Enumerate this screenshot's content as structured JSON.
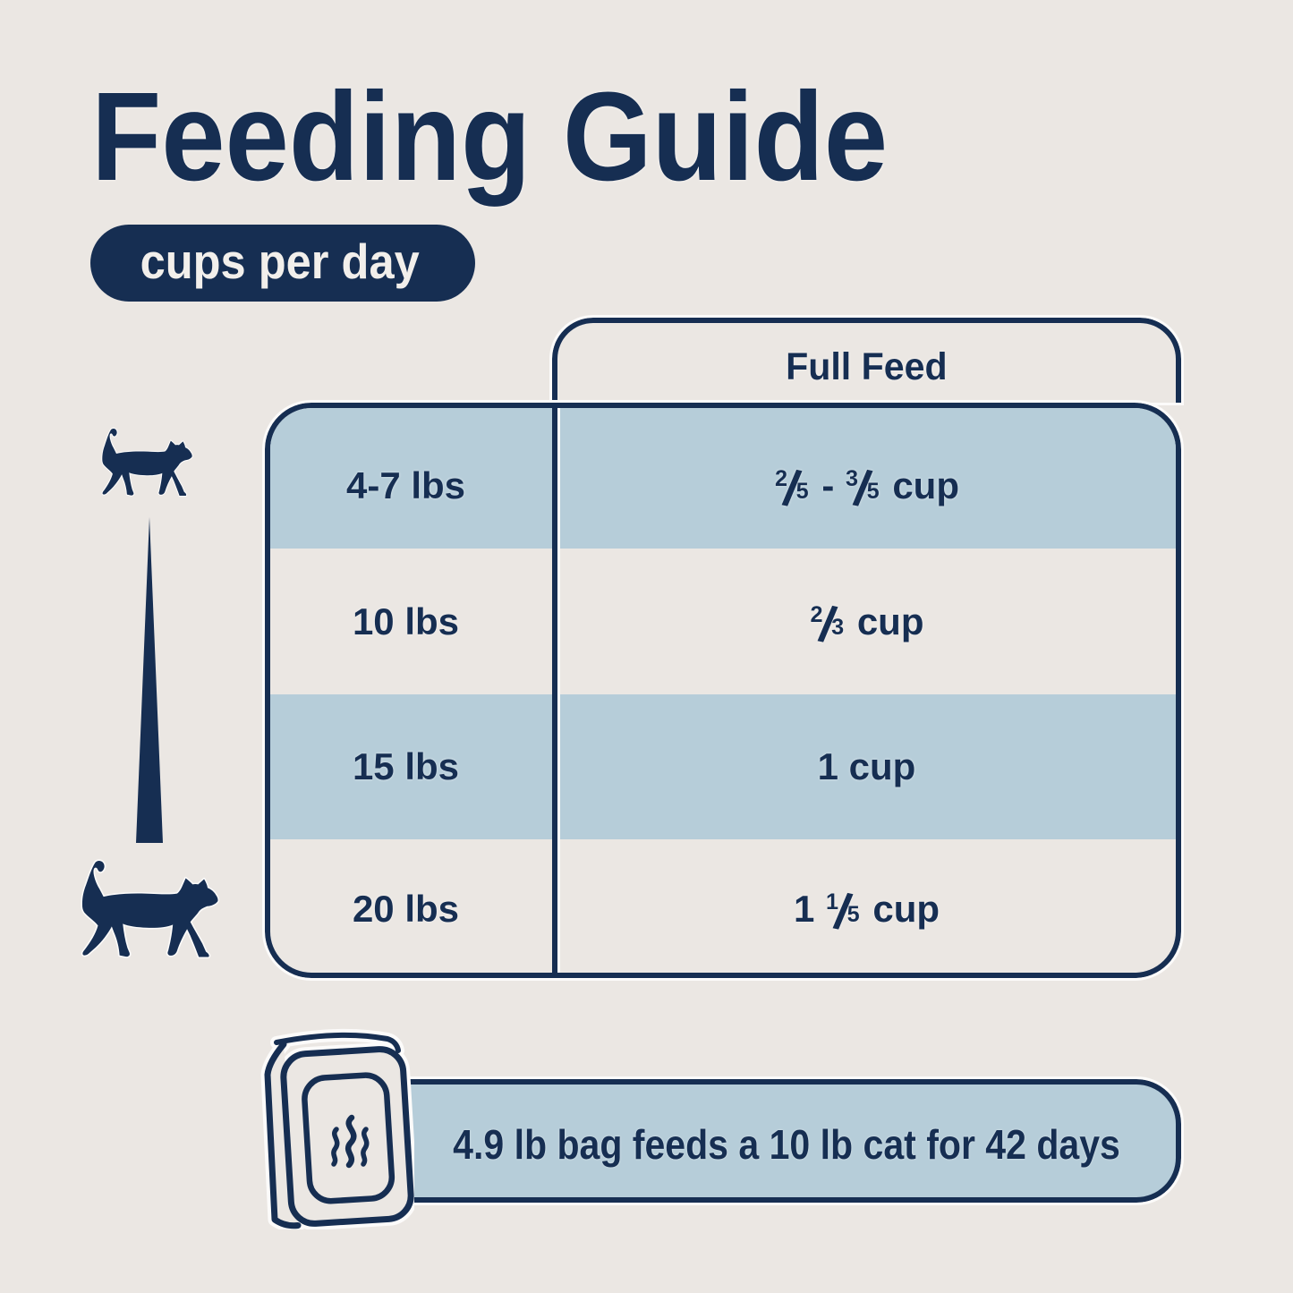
{
  "colors": {
    "background": "#ebe7e3",
    "navy": "#162e52",
    "row_blue": "#b6cdd9",
    "pill_text": "#f2efeb",
    "halo": "#fcfbfa"
  },
  "title": "Feeding Guide",
  "unit_pill": {
    "label": "cups per day"
  },
  "table": {
    "column_header": "Full Feed",
    "rows": [
      {
        "weight": "4-7 lbs",
        "shaded": true,
        "feed_parts": [
          {
            "frac": [
              "2",
              "5"
            ]
          },
          {
            "text": " - "
          },
          {
            "frac": [
              "3",
              "5"
            ]
          },
          {
            "text": " cup"
          }
        ]
      },
      {
        "weight": "10 lbs",
        "shaded": false,
        "feed_parts": [
          {
            "frac": [
              "2",
              "3"
            ]
          },
          {
            "text": " cup"
          }
        ]
      },
      {
        "weight": "15 lbs",
        "shaded": true,
        "feed_parts": [
          {
            "text": "1 cup"
          }
        ]
      },
      {
        "weight": "20 lbs",
        "shaded": false,
        "feed_parts": [
          {
            "text": "1 "
          },
          {
            "frac": [
              "1",
              "5"
            ]
          },
          {
            "text": " cup"
          }
        ]
      }
    ]
  },
  "banner": {
    "text": "4.9 lb bag feeds a 10 lb cat for 42 days"
  },
  "icons": {
    "small_cat": "cat-silhouette-walking-right",
    "large_cat": "cat-silhouette-walking-right",
    "size_scale_wedge": "tapered-triangle-pointing-up",
    "food_bag": "kibble-bag-outline-drawing",
    "aroma": "three-steam-squiggles"
  },
  "chart_data": {
    "type": "table",
    "title": "Feeding Guide",
    "unit": "cups per day",
    "columns": [
      "",
      "Full Feed"
    ],
    "rows": [
      [
        "4-7 lbs",
        "2/5 - 3/5 cup"
      ],
      [
        "10 lbs",
        "2/3 cup"
      ],
      [
        "15 lbs",
        "1 cup"
      ],
      [
        "20 lbs",
        "1 1/5 cup"
      ]
    ],
    "values_cups_per_day": [
      {
        "weight_lbs": "4-7",
        "cups_min": 0.4,
        "cups_max": 0.6
      },
      {
        "weight_lbs": "10",
        "cups_min": 0.667,
        "cups_max": 0.667
      },
      {
        "weight_lbs": "15",
        "cups_min": 1,
        "cups_max": 1
      },
      {
        "weight_lbs": "20",
        "cups_min": 1.2,
        "cups_max": 1.2
      }
    ],
    "footnote": "4.9 lb bag feeds a 10 lb cat for 42 days"
  }
}
